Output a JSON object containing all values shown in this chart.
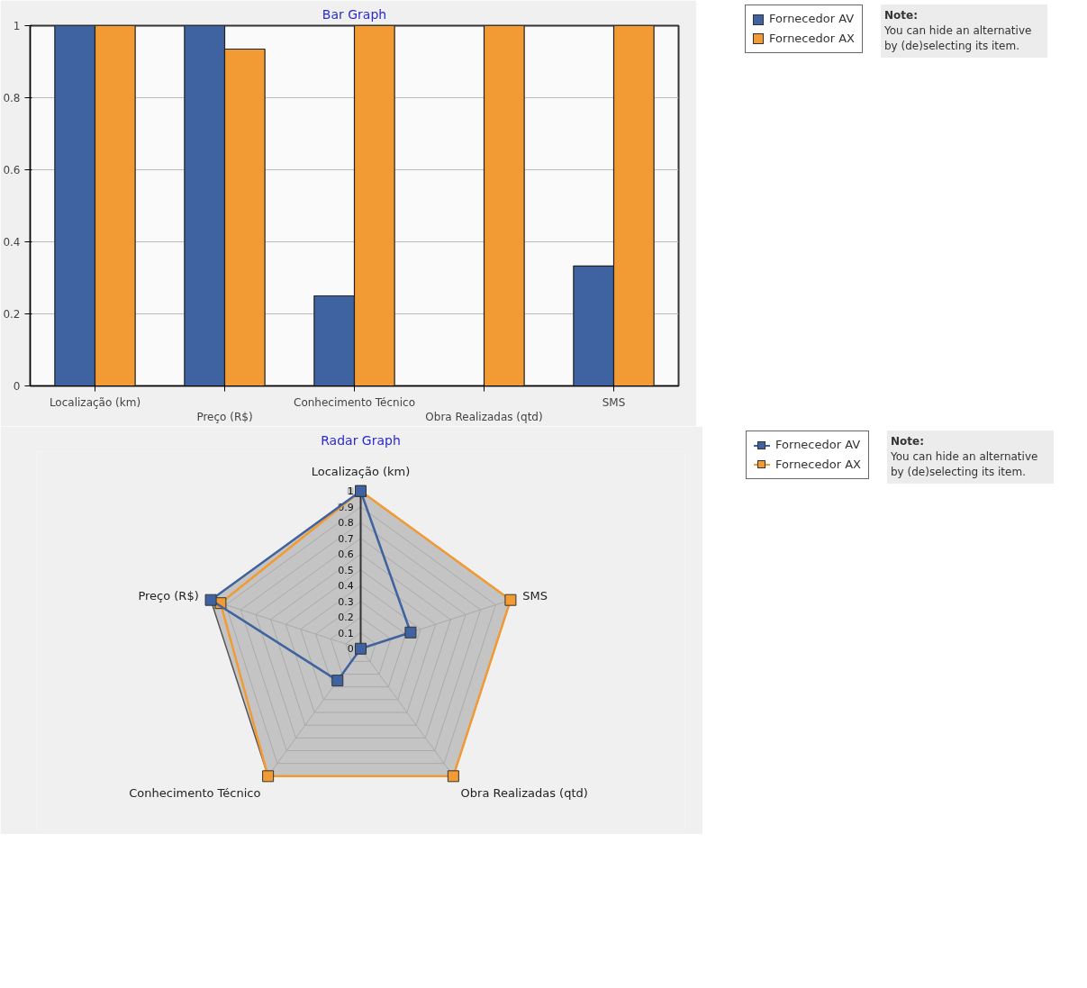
{
  "chart_data": [
    {
      "type": "bar",
      "title": "Bar Graph",
      "categories": [
        "Localização (km)",
        "Preço (R$)",
        "Conhecimento Técnico",
        "Obra Realizadas (qtd)",
        "SMS"
      ],
      "series": [
        {
          "name": "Fornecedor AV",
          "color": "#3f62a0",
          "values": [
            1,
            1,
            0.25,
            0,
            0.333
          ]
        },
        {
          "name": "Fornecedor AX",
          "color": "#f29a33",
          "values": [
            1,
            0.935,
            1,
            1,
            1
          ]
        }
      ],
      "ylim": [
        0,
        1
      ],
      "yticks": [
        0,
        0.2,
        0.4,
        0.6,
        0.8,
        1
      ],
      "grid": "y",
      "legend": "top right",
      "annotations": [
        "Note:",
        "You can hide an alternative by (de)selecting its item."
      ]
    },
    {
      "type": "radar",
      "title": "Radar Graph",
      "categories": [
        "Localização (km)",
        "SMS",
        "Obra Realizadas (qtd)",
        "Conhecimento Técnico",
        "Preço (R$)"
      ],
      "series": [
        {
          "name": "Fornecedor AV",
          "color": "#3f62a0",
          "values": [
            1,
            0.333,
            0,
            0.25,
            1
          ]
        },
        {
          "name": "Fornecedor AX",
          "color": "#f29a33",
          "values": [
            1,
            1,
            1,
            1,
            0.935
          ]
        }
      ],
      "ylim": [
        0,
        1
      ],
      "yticks": [
        0,
        0.1,
        0.2,
        0.3,
        0.4,
        0.5,
        0.6,
        0.7,
        0.8,
        0.9,
        1
      ],
      "marker": "square",
      "legend": "top right",
      "annotations": [
        "Note:",
        "You can hide an alternative by (de)selecting its item."
      ]
    }
  ]
}
